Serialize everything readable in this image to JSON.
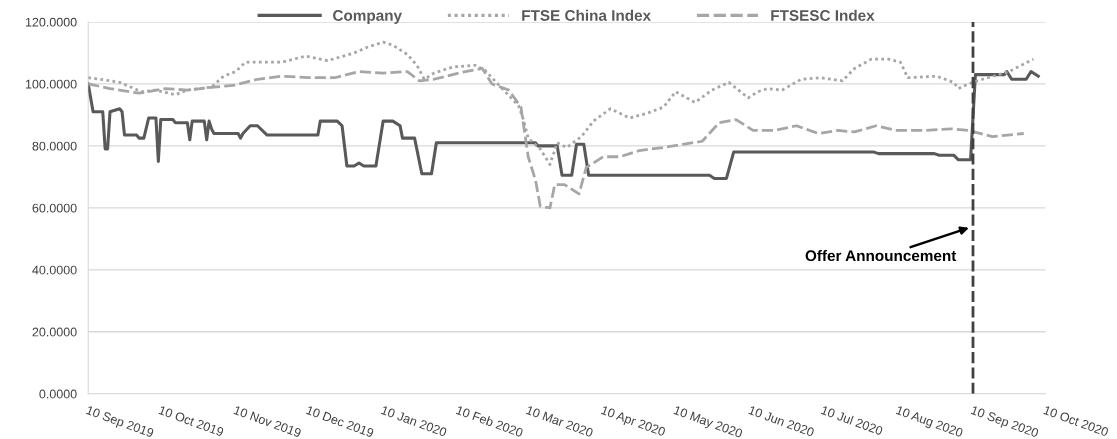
{
  "chart_data": {
    "type": "line",
    "xlim": [
      "2019-09-10",
      "2020-10-10"
    ],
    "xticks": [
      {
        "value": "2019-09-10",
        "label": "10 Sep 2019"
      },
      {
        "value": "2019-10-10",
        "label": "10 Oct 2019"
      },
      {
        "value": "2019-11-10",
        "label": "10 Nov 2019"
      },
      {
        "value": "2019-12-10",
        "label": "10 Dec 2019"
      },
      {
        "value": "2020-01-10",
        "label": "10 Jan 2020"
      },
      {
        "value": "2020-02-10",
        "label": "10 Feb 2020"
      },
      {
        "value": "2020-03-10",
        "label": "10 Mar 2020"
      },
      {
        "value": "2020-04-10",
        "label": "10 Apr 2020"
      },
      {
        "value": "2020-05-10",
        "label": "10 May 2020"
      },
      {
        "value": "2020-06-10",
        "label": "10 Jun 2020"
      },
      {
        "value": "2020-07-10",
        "label": "10 Jul 2020"
      },
      {
        "value": "2020-08-10",
        "label": "10 Aug 2020"
      },
      {
        "value": "2020-09-10",
        "label": "10 Sep 2020"
      },
      {
        "value": "2020-10-10",
        "label": "10 Oct 2020"
      }
    ],
    "ylim": [
      0,
      120
    ],
    "yticks": [
      {
        "value": 0,
        "label": "0.0000"
      },
      {
        "value": 20,
        "label": "20.0000"
      },
      {
        "value": 40,
        "label": "40.0000"
      },
      {
        "value": 60,
        "label": "60.0000"
      },
      {
        "value": 80,
        "label": "80.0000"
      },
      {
        "value": 100,
        "label": "100.0000"
      },
      {
        "value": 120,
        "label": "120.0000"
      }
    ],
    "grid": "y",
    "legend": "top",
    "marker": "none",
    "series": [
      {
        "name": "Company",
        "color": "#595959",
        "line_style": "solid",
        "x": [
          "2019-09-10",
          "2019-09-12",
          "2019-09-16",
          "2019-09-17",
          "2019-09-18",
          "2019-09-19",
          "2019-09-23",
          "2019-09-24",
          "2019-09-25",
          "2019-09-30",
          "2019-10-01",
          "2019-10-03",
          "2019-10-05",
          "2019-10-08",
          "2019-10-09",
          "2019-10-10",
          "2019-10-15",
          "2019-10-16",
          "2019-10-21",
          "2019-10-22",
          "2019-10-23",
          "2019-10-28",
          "2019-10-29",
          "2019-10-30",
          "2019-10-31",
          "2019-11-01",
          "2019-11-11",
          "2019-11-12",
          "2019-11-13",
          "2019-11-16",
          "2019-11-19",
          "2019-11-23",
          "2019-12-14",
          "2019-12-15",
          "2019-12-22",
          "2019-12-24",
          "2019-12-26",
          "2019-12-29",
          "2019-12-31",
          "2020-01-02",
          "2020-01-07",
          "2020-01-10",
          "2020-01-14",
          "2020-01-17",
          "2020-01-18",
          "2020-01-23",
          "2020-01-26",
          "2020-01-30",
          "2020-02-01",
          "2020-03-13",
          "2020-03-14",
          "2020-03-22",
          "2020-03-24",
          "2020-03-28",
          "2020-03-30",
          "2020-04-02",
          "2020-04-04",
          "2020-05-24",
          "2020-05-26",
          "2020-05-31",
          "2020-06-03",
          "2020-07-31",
          "2020-08-02",
          "2020-08-25",
          "2020-08-27",
          "2020-09-02",
          "2020-09-04",
          "2020-09-09",
          "2020-09-11",
          "2020-09-23",
          "2020-09-24",
          "2020-09-26",
          "2020-10-02",
          "2020-10-04",
          "2020-10-07"
        ],
        "values": [
          100,
          91,
          91,
          79,
          79,
          91,
          92,
          91,
          83.5,
          83.5,
          82.5,
          82.5,
          89,
          89,
          75,
          88.5,
          88.5,
          87.5,
          87.5,
          82,
          88,
          88,
          82,
          88,
          85.5,
          84,
          84,
          82.5,
          84,
          86.5,
          86.5,
          83.5,
          83.5,
          88,
          88,
          86.5,
          73.5,
          73.5,
          74.5,
          73.5,
          73.5,
          88,
          88,
          86.5,
          82.5,
          82.5,
          71,
          71,
          81,
          81,
          80,
          80,
          70.5,
          70.5,
          80.5,
          80.5,
          70.5,
          70.5,
          69.5,
          69.5,
          78,
          78,
          77.5,
          77.5,
          77,
          77,
          75.5,
          75.5,
          103,
          103,
          104,
          101.5,
          101.5,
          104,
          102.5
        ]
      },
      {
        "name": "FTSE China Index",
        "color": "#a6a6a6",
        "line_style": "dotted",
        "x": [
          "2019-09-10",
          "2019-09-15",
          "2019-09-23",
          "2019-10-02",
          "2019-10-08",
          "2019-10-16",
          "2019-10-21",
          "2019-10-31",
          "2019-11-05",
          "2019-11-10",
          "2019-11-14",
          "2019-11-21",
          "2019-11-29",
          "2019-12-09",
          "2019-12-18",
          "2019-12-29",
          "2020-01-04",
          "2020-01-10",
          "2020-01-14",
          "2020-01-20",
          "2020-01-24",
          "2020-01-27",
          "2020-01-31",
          "2020-02-08",
          "2020-02-17",
          "2020-02-21",
          "2020-02-27",
          "2020-03-06",
          "2020-03-08",
          "2020-03-10",
          "2020-03-15",
          "2020-03-19",
          "2020-03-22",
          "2020-03-26",
          "2020-04-01",
          "2020-04-06",
          "2020-04-13",
          "2020-04-21",
          "2020-04-28",
          "2020-05-05",
          "2020-05-10",
          "2020-05-18",
          "2020-05-25",
          "2020-06-01",
          "2020-06-09",
          "2020-06-13",
          "2020-06-17",
          "2020-06-23",
          "2020-07-01",
          "2020-07-09",
          "2020-07-18",
          "2020-07-23",
          "2020-07-30",
          "2020-08-06",
          "2020-08-11",
          "2020-08-14",
          "2020-08-26",
          "2020-09-02",
          "2020-09-04",
          "2020-09-08",
          "2020-09-14",
          "2020-09-25",
          "2020-10-05"
        ],
        "values": [
          102,
          101.5,
          100.5,
          97.5,
          98,
          96.5,
          98,
          99,
          102.5,
          104,
          107,
          107,
          107,
          109,
          107.5,
          110,
          112,
          113.5,
          112.5,
          109.5,
          106,
          101.5,
          103.5,
          105.5,
          106,
          104.5,
          99.5,
          93,
          88.5,
          82.5,
          79,
          74,
          81,
          79.5,
          83,
          88,
          92,
          89,
          90.5,
          92.5,
          97.5,
          94,
          98,
          100.5,
          95.5,
          97.5,
          98.5,
          98,
          101.5,
          102,
          101,
          105,
          108,
          108,
          107,
          102,
          102.5,
          100.5,
          98.5,
          100,
          101.5,
          104,
          108
        ]
      },
      {
        "name": "FTSESC Index",
        "color": "#a6a6a6",
        "line_style": "dashed",
        "x": [
          "2019-09-10",
          "2019-09-19",
          "2019-10-01",
          "2019-10-12",
          "2019-10-21",
          "2019-11-01",
          "2019-11-09",
          "2019-11-19",
          "2019-11-29",
          "2019-12-10",
          "2019-12-21",
          "2019-12-31",
          "2020-01-10",
          "2020-01-20",
          "2020-01-25",
          "2020-01-31",
          "2020-02-13",
          "2020-02-20",
          "2020-02-24",
          "2020-03-02",
          "2020-03-07",
          "2020-03-10",
          "2020-03-13",
          "2020-03-15",
          "2020-03-19",
          "2020-03-21",
          "2020-03-25",
          "2020-03-31",
          "2020-04-03",
          "2020-04-10",
          "2020-04-17",
          "2020-04-25",
          "2020-05-05",
          "2020-05-13",
          "2020-05-21",
          "2020-05-28",
          "2020-06-04",
          "2020-06-11",
          "2020-06-20",
          "2020-06-29",
          "2020-07-08",
          "2020-07-16",
          "2020-07-23",
          "2020-08-01",
          "2020-08-09",
          "2020-08-21",
          "2020-09-01",
          "2020-09-08",
          "2020-09-18",
          "2020-10-01"
        ],
        "values": [
          100,
          98.5,
          97,
          98.5,
          98,
          99,
          99.5,
          101.5,
          102.5,
          102,
          102,
          104,
          103.5,
          104,
          101,
          101.5,
          104,
          105,
          100,
          98,
          92.5,
          76.5,
          69,
          60.5,
          60,
          67.5,
          67.5,
          64.5,
          73,
          76.5,
          76.5,
          78.5,
          79.5,
          80.5,
          81.5,
          87.5,
          88.5,
          85,
          85,
          86.5,
          84,
          85,
          84.5,
          86.5,
          85,
          85,
          85.5,
          85,
          83,
          84
        ]
      }
    ],
    "ref_lines": [
      {
        "axis": "x",
        "value": "2020-09-10",
        "label": null,
        "color": "#404040",
        "line_style": "dashed"
      }
    ],
    "annotations": [
      {
        "text": "Offer Announcement",
        "x": "2020-09-10",
        "y": 54
      }
    ]
  }
}
